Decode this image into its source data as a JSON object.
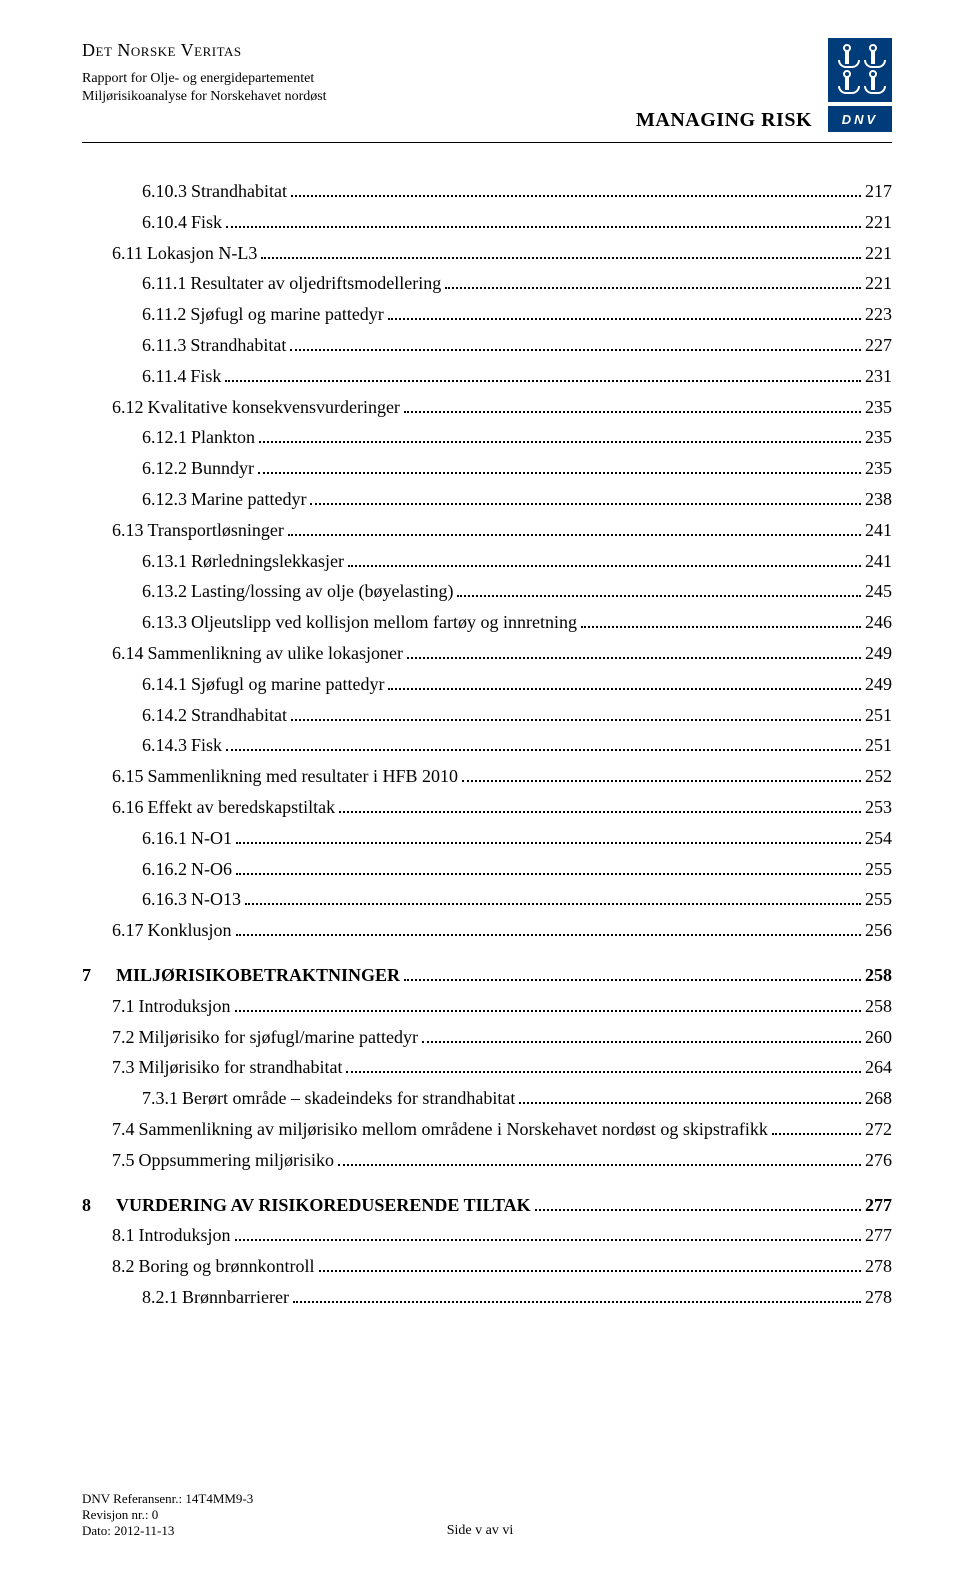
{
  "header": {
    "org": "Det Norske Veritas",
    "sub1": "Rapport for Olje- og energidepartementet",
    "sub2": "Miljørisikoanalyse for Norskehavet nordøst",
    "managing_risk": "MANAGING RISK",
    "dnv": "DNV"
  },
  "toc": [
    {
      "lvl": 3,
      "num": "6.10.3",
      "label": "Strandhabitat",
      "pg": "217"
    },
    {
      "lvl": 3,
      "num": "6.10.4",
      "label": "Fisk",
      "pg": "221"
    },
    {
      "lvl": 2,
      "num": "6.11",
      "label": "Lokasjon N-L3",
      "pg": "221"
    },
    {
      "lvl": 3,
      "num": "6.11.1",
      "label": "Resultater av oljedriftsmodellering",
      "pg": "221"
    },
    {
      "lvl": 3,
      "num": "6.11.2",
      "label": "Sjøfugl og marine pattedyr",
      "pg": "223"
    },
    {
      "lvl": 3,
      "num": "6.11.3",
      "label": "Strandhabitat",
      "pg": "227"
    },
    {
      "lvl": 3,
      "num": "6.11.4",
      "label": "Fisk",
      "pg": "231"
    },
    {
      "lvl": 2,
      "num": "6.12",
      "label": "Kvalitative konsekvensvurderinger",
      "pg": "235"
    },
    {
      "lvl": 3,
      "num": "6.12.1",
      "label": "Plankton",
      "pg": "235"
    },
    {
      "lvl": 3,
      "num": "6.12.2",
      "label": "Bunndyr",
      "pg": "235"
    },
    {
      "lvl": 3,
      "num": "6.12.3",
      "label": "Marine pattedyr",
      "pg": "238"
    },
    {
      "lvl": 2,
      "num": "6.13",
      "label": "Transportløsninger",
      "pg": "241"
    },
    {
      "lvl": 3,
      "num": "6.13.1",
      "label": "Rørledningslekkasjer",
      "pg": "241"
    },
    {
      "lvl": 3,
      "num": "6.13.2",
      "label": "Lasting/lossing av olje (bøyelasting)",
      "pg": "245"
    },
    {
      "lvl": 3,
      "num": "6.13.3",
      "label": "Oljeutslipp ved kollisjon mellom fartøy og innretning",
      "pg": "246"
    },
    {
      "lvl": 2,
      "num": "6.14",
      "label": "Sammenlikning av ulike lokasjoner",
      "pg": "249"
    },
    {
      "lvl": 3,
      "num": "6.14.1",
      "label": "Sjøfugl og marine pattedyr",
      "pg": "249"
    },
    {
      "lvl": 3,
      "num": "6.14.2",
      "label": "Strandhabitat",
      "pg": "251"
    },
    {
      "lvl": 3,
      "num": "6.14.3",
      "label": "Fisk",
      "pg": "251"
    },
    {
      "lvl": 2,
      "num": "6.15",
      "label": "Sammenlikning med resultater i HFB 2010",
      "pg": "252"
    },
    {
      "lvl": 2,
      "num": "6.16",
      "label": "Effekt av beredskapstiltak",
      "pg": "253"
    },
    {
      "lvl": 3,
      "num": "6.16.1",
      "label": "N-O1",
      "pg": "254"
    },
    {
      "lvl": 3,
      "num": "6.16.2",
      "label": "N-O6",
      "pg": "255"
    },
    {
      "lvl": 3,
      "num": "6.16.3",
      "label": "N-O13",
      "pg": "255"
    },
    {
      "lvl": 2,
      "num": "6.17",
      "label": "Konklusjon",
      "pg": "256"
    },
    {
      "gap": true
    },
    {
      "lvl": 1,
      "num": "7",
      "label": "MILJØRISIKOBETRAKTNINGER",
      "pg": "258"
    },
    {
      "lvl": 2,
      "num": "7.1",
      "label": "Introduksjon",
      "pg": "258"
    },
    {
      "lvl": 2,
      "num": "7.2",
      "label": "Miljørisiko for sjøfugl/marine pattedyr",
      "pg": "260"
    },
    {
      "lvl": 2,
      "num": "7.3",
      "label": "Miljørisiko for strandhabitat",
      "pg": "264"
    },
    {
      "lvl": 3,
      "num": "7.3.1",
      "label": "Berørt område – skadeindeks for strandhabitat",
      "pg": "268"
    },
    {
      "lvl": 2,
      "num": "7.4",
      "label": "Sammenlikning av miljørisiko mellom områdene i Norskehavet nordøst og skipstrafikk",
      "pg": "272",
      "multi": true
    },
    {
      "lvl": 2,
      "num": "7.5",
      "label": "Oppsummering miljørisiko",
      "pg": "276"
    },
    {
      "gap": true
    },
    {
      "lvl": 1,
      "num": "8",
      "label": "VURDERING AV RISIKOREDUSERENDE TILTAK",
      "pg": "277"
    },
    {
      "lvl": 2,
      "num": "8.1",
      "label": "Introduksjon",
      "pg": "277"
    },
    {
      "lvl": 2,
      "num": "8.2",
      "label": "Boring og brønnkontroll",
      "pg": "278"
    },
    {
      "lvl": 3,
      "num": "8.2.1",
      "label": "Brønnbarrierer",
      "pg": "278"
    }
  ],
  "footer": {
    "ref_label": "DNV Referansenr.:",
    "ref_val": "14T4MM9-3",
    "rev_label": "Revisjon nr.:",
    "rev_val": "0",
    "date_label": "Dato:",
    "date_val": "2012-11-13",
    "page": "Side v av vi"
  }
}
